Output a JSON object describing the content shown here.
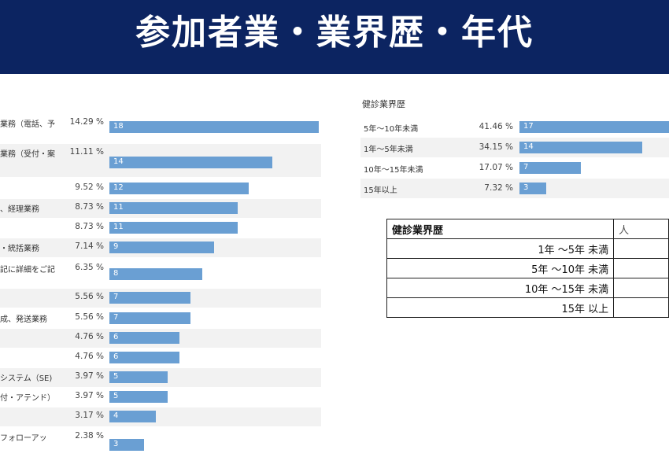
{
  "title": "参加者業・業界歴・年代",
  "colors": {
    "header_bg": "#0c2461",
    "bar": "#6a9fd3",
    "row_shade": "#f2f2f2"
  },
  "chart_data": [
    {
      "type": "bar",
      "orientation": "horizontal",
      "title": "",
      "categories": [
        "業務（電話、予",
        "業務（受付・案",
        "",
        "、経理業務",
        "",
        "・統括業務",
        "記に詳細をご記",
        "",
        "成、発送業務",
        "",
        "",
        "システム（SE)",
        "付・アテンド）",
        "",
        "フォローアッ"
      ],
      "percents": [
        "14.29 %",
        "11.11 %",
        "9.52 %",
        "8.73 %",
        "8.73 %",
        "7.14 %",
        "6.35 %",
        "5.56 %",
        "5.56 %",
        "4.76 %",
        "4.76 %",
        "3.97 %",
        "3.97 %",
        "3.17 %",
        "2.38 %"
      ],
      "values": [
        18,
        14,
        12,
        11,
        11,
        9,
        8,
        7,
        7,
        6,
        6,
        5,
        5,
        4,
        3
      ],
      "xlim": [
        0,
        18
      ],
      "grid": false
    },
    {
      "type": "bar",
      "orientation": "horizontal",
      "title": "健診業界歴",
      "categories": [
        "5年〜10年未満",
        "1年〜5年未満",
        "10年〜15年未満",
        "15年以上"
      ],
      "percents": [
        "41.46 %",
        "34.15 %",
        "17.07 %",
        "7.32 %"
      ],
      "values": [
        17,
        14,
        7,
        3
      ],
      "xlim": [
        0,
        17
      ],
      "grid": false
    }
  ],
  "table": {
    "header": [
      "健診業界歴",
      "人"
    ],
    "rows": [
      "1年 〜5年 未満",
      "5年 〜10年 未満",
      "10年 〜15年 未満",
      "15年 以上"
    ]
  }
}
